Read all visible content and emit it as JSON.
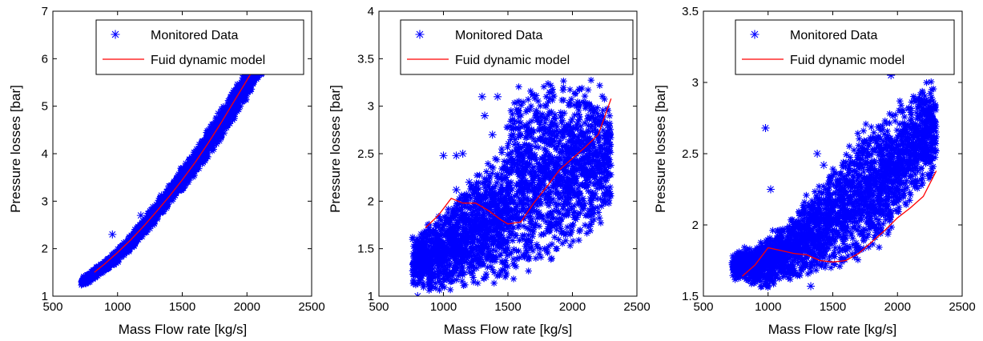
{
  "colors": {
    "monitored": "#0000ff",
    "model": "#ff0000",
    "axis": "#000000",
    "background": "#ffffff"
  },
  "chart_data": [
    {
      "type": "scatter",
      "xlabel": "Mass Flow rate [kg/s]",
      "ylabel": "Pressure losses [bar]",
      "xlim": [
        500,
        2500
      ],
      "ylim": [
        1,
        7
      ],
      "xticks": [
        "500",
        "1000",
        "1500",
        "2000",
        "2500"
      ],
      "yticks": [
        "1",
        "2",
        "3",
        "4",
        "5",
        "6",
        "7"
      ],
      "grid": false,
      "legend": {
        "placement": "top-right",
        "entries": [
          "Monitored Data",
          "Fuid dynamic model"
        ]
      },
      "series": [
        {
          "name": "Monitored Data",
          "type": "scatter-cloud",
          "marker": "asterisk",
          "band_x": [
            720,
            800,
            900,
            1000,
            1100,
            1200,
            1300,
            1400,
            1500,
            1600,
            1700,
            1800,
            1900,
            2000,
            2100,
            2200,
            2250
          ],
          "band_low": [
            1.2,
            1.3,
            1.5,
            1.7,
            1.95,
            2.25,
            2.55,
            2.9,
            3.2,
            3.55,
            3.9,
            4.3,
            4.7,
            5.15,
            5.6,
            6.0,
            6.2
          ],
          "band_high": [
            1.4,
            1.55,
            1.75,
            2.0,
            2.3,
            2.65,
            3.0,
            3.35,
            3.75,
            4.1,
            4.55,
            4.95,
            5.4,
            5.8,
            6.0,
            6.0,
            6.0
          ],
          "outliers": [
            [
              960,
              2.3
            ],
            [
              1340,
              3.12
            ],
            [
              1480,
              3.25
            ],
            [
              1180,
              2.7
            ]
          ]
        },
        {
          "name": "Fuid dynamic model",
          "type": "line",
          "x": [
            820,
            900,
            1000,
            1100,
            1200,
            1300,
            1400,
            1500,
            1600,
            1700,
            1800,
            1900,
            2000,
            2060
          ],
          "y": [
            1.5,
            1.68,
            1.92,
            2.18,
            2.47,
            2.78,
            3.1,
            3.45,
            3.82,
            4.22,
            4.65,
            5.1,
            5.55,
            5.82
          ]
        }
      ]
    },
    {
      "type": "scatter",
      "xlabel": "Mass Flow rate [kg/s]",
      "ylabel": "Pressure losses [bar]",
      "xlim": [
        500,
        2500
      ],
      "ylim": [
        1,
        4
      ],
      "xticks": [
        "500",
        "1000",
        "1500",
        "2000",
        "2500"
      ],
      "yticks": [
        "1",
        "1.5",
        "2",
        "2.5",
        "3",
        "3.5",
        "4"
      ],
      "grid": false,
      "legend": {
        "placement": "top-right",
        "entries": [
          "Monitored Data",
          "Fuid dynamic model"
        ]
      },
      "series": [
        {
          "name": "Monitored Data",
          "type": "scatter-cloud",
          "marker": "asterisk",
          "band_x": [
            760,
            850,
            950,
            1050,
            1150,
            1250,
            1350,
            1450,
            1550,
            1650,
            1750,
            1850,
            1950,
            2050,
            2150,
            2250,
            2300
          ],
          "band_low": [
            1.05,
            1.02,
            1.02,
            1.05,
            1.08,
            1.1,
            1.1,
            1.12,
            1.15,
            1.2,
            1.25,
            1.3,
            1.4,
            1.5,
            1.6,
            1.75,
            1.9
          ],
          "band_high": [
            1.65,
            1.75,
            1.85,
            2.0,
            2.15,
            2.3,
            2.45,
            2.6,
            3.2,
            3.3,
            3.3,
            3.3,
            3.3,
            3.3,
            3.3,
            3.2,
            2.9
          ],
          "outliers": [
            [
              1000,
              2.48
            ],
            [
              1100,
              2.48
            ],
            [
              1150,
              2.5
            ],
            [
              1300,
              3.1
            ],
            [
              1420,
              3.1
            ],
            [
              1320,
              2.9
            ],
            [
              1380,
              2.7
            ],
            [
              1200,
              2.2
            ],
            [
              800,
              1.0
            ],
            [
              1100,
              2.12
            ]
          ]
        },
        {
          "name": "Fuid dynamic model",
          "type": "line",
          "x": [
            860,
            960,
            1060,
            1150,
            1250,
            1350,
            1450,
            1500,
            1600,
            1700,
            1800,
            1900,
            2000,
            2100,
            2200,
            2300
          ],
          "y": [
            1.72,
            1.85,
            2.03,
            1.98,
            1.98,
            1.9,
            1.8,
            1.76,
            1.78,
            1.98,
            2.15,
            2.33,
            2.45,
            2.57,
            2.7,
            3.08
          ]
        }
      ]
    },
    {
      "type": "scatter",
      "xlabel": "Mass Flow rate [kg/s]",
      "ylabel": "Pressure losses [bar]",
      "xlim": [
        500,
        2500
      ],
      "ylim": [
        1.5,
        3.5
      ],
      "xticks": [
        "500",
        "1000",
        "1500",
        "2000",
        "2500"
      ],
      "yticks": [
        "1.5",
        "2",
        "2.5",
        "3",
        "3.5"
      ],
      "grid": false,
      "legend": {
        "placement": "top-right",
        "entries": [
          "Monitored Data",
          "Fuid dynamic model"
        ]
      },
      "series": [
        {
          "name": "Monitored Data",
          "type": "scatter-cloud",
          "marker": "asterisk",
          "band_x": [
            720,
            800,
            900,
            1000,
            1100,
            1200,
            1300,
            1400,
            1500,
            1600,
            1700,
            1800,
            1900,
            2000,
            2100,
            2200,
            2300
          ],
          "band_low": [
            1.6,
            1.6,
            1.55,
            1.55,
            1.6,
            1.6,
            1.62,
            1.65,
            1.68,
            1.7,
            1.73,
            1.78,
            1.85,
            1.95,
            2.1,
            2.2,
            2.4
          ],
          "band_high": [
            1.8,
            1.85,
            1.85,
            1.95,
            2.0,
            2.1,
            2.25,
            2.3,
            2.45,
            2.55,
            2.7,
            2.75,
            2.8,
            2.9,
            2.95,
            3.05,
            3.0
          ],
          "outliers": [
            [
              980,
              2.68
            ],
            [
              1020,
              2.25
            ],
            [
              1330,
              1.57
            ],
            [
              1380,
              2.5
            ],
            [
              1430,
              2.42
            ],
            [
              1950,
              3.05
            ]
          ]
        },
        {
          "name": "Fuid dynamic model",
          "type": "line",
          "x": [
            800,
            900,
            1000,
            1100,
            1200,
            1300,
            1400,
            1500,
            1600,
            1700,
            1800,
            1900,
            2000,
            2100,
            2200,
            2300
          ],
          "y": [
            1.64,
            1.72,
            1.84,
            1.82,
            1.8,
            1.79,
            1.75,
            1.74,
            1.75,
            1.8,
            1.88,
            1.96,
            2.05,
            2.12,
            2.2,
            2.38
          ]
        }
      ]
    }
  ]
}
